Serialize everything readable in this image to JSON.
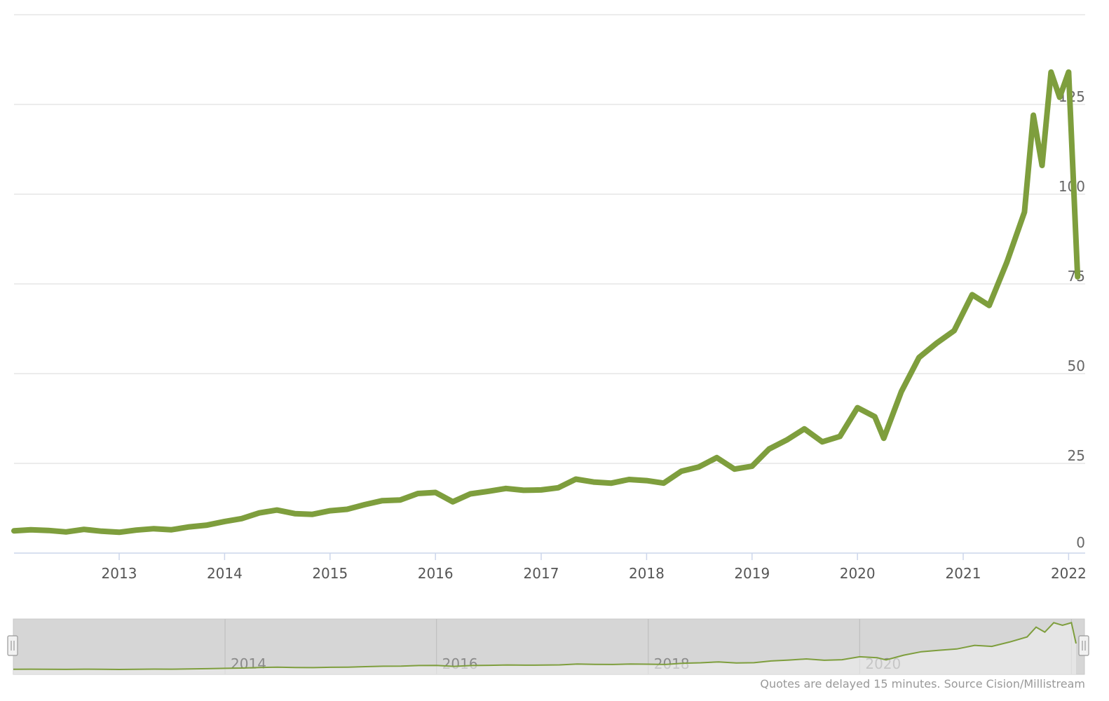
{
  "colors": {
    "series": "#7e9e3d",
    "grid": "#e6e6e6",
    "navigator_bg": "#d6d6d6",
    "navigator_mask": "#efefef",
    "axis": "#ccd6eb"
  },
  "credits": "Quotes are delayed 15 minutes. Source Cision/Millistream",
  "navigator": {
    "labels": [
      "2014",
      "2016",
      "2018",
      "2020"
    ],
    "left_handle_icon": "drag-handle-icon",
    "right_handle_icon": "drag-handle-icon"
  },
  "chart_data": {
    "type": "line",
    "title": "",
    "xlabel": "",
    "ylabel": "",
    "x_range": [
      "2012-01",
      "2022-02"
    ],
    "y_ticks": [
      0,
      25,
      50,
      75,
      100,
      125
    ],
    "y_tick_labels": [
      "0",
      "25",
      "50",
      "75",
      "100",
      "125"
    ],
    "x_tick_labels": [
      "2013",
      "2014",
      "2015",
      "2016",
      "2017",
      "2018",
      "2019",
      "2020",
      "2021",
      "2022"
    ],
    "ylim": [
      0,
      150
    ],
    "y_axis_position": "right",
    "grid": true,
    "legend": "none",
    "series": [
      {
        "color": "#7e9e3d",
        "points": [
          [
            "2012-01-01",
            6.2
          ],
          [
            "2012-03-01",
            6.5
          ],
          [
            "2012-05-01",
            6.3
          ],
          [
            "2012-07-01",
            5.9
          ],
          [
            "2012-09-01",
            6.6
          ],
          [
            "2012-11-01",
            6.1
          ],
          [
            "2013-01-01",
            5.8
          ],
          [
            "2013-03-01",
            6.4
          ],
          [
            "2013-05-01",
            6.8
          ],
          [
            "2013-07-01",
            6.5
          ],
          [
            "2013-09-01",
            7.3
          ],
          [
            "2013-11-01",
            7.8
          ],
          [
            "2014-01-01",
            8.8
          ],
          [
            "2014-03-01",
            9.6
          ],
          [
            "2014-05-01",
            11.2
          ],
          [
            "2014-07-01",
            12.0
          ],
          [
            "2014-09-01",
            11.0
          ],
          [
            "2014-11-01",
            10.8
          ],
          [
            "2015-01-01",
            11.8
          ],
          [
            "2015-03-01",
            12.2
          ],
          [
            "2015-05-01",
            13.5
          ],
          [
            "2015-07-01",
            14.6
          ],
          [
            "2015-09-01",
            14.8
          ],
          [
            "2015-11-01",
            16.6
          ],
          [
            "2016-01-01",
            16.9
          ],
          [
            "2016-03-01",
            14.3
          ],
          [
            "2016-05-01",
            16.5
          ],
          [
            "2016-07-01",
            17.2
          ],
          [
            "2016-09-01",
            18.0
          ],
          [
            "2016-11-01",
            17.5
          ],
          [
            "2017-01-01",
            17.6
          ],
          [
            "2017-03-01",
            18.2
          ],
          [
            "2017-05-01",
            20.6
          ],
          [
            "2017-07-01",
            19.8
          ],
          [
            "2017-09-01",
            19.5
          ],
          [
            "2017-11-01",
            20.5
          ],
          [
            "2018-01-01",
            20.2
          ],
          [
            "2018-03-01",
            19.5
          ],
          [
            "2018-05-01",
            22.8
          ],
          [
            "2018-07-01",
            24.0
          ],
          [
            "2018-09-01",
            26.6
          ],
          [
            "2018-11-01",
            23.4
          ],
          [
            "2019-01-01",
            24.2
          ],
          [
            "2019-03-01",
            29.0
          ],
          [
            "2019-05-01",
            31.5
          ],
          [
            "2019-07-01",
            34.6
          ],
          [
            "2019-09-01",
            31.0
          ],
          [
            "2019-11-01",
            32.5
          ],
          [
            "2020-01-01",
            40.5
          ],
          [
            "2020-03-01",
            38.0
          ],
          [
            "2020-04-01",
            32.0
          ],
          [
            "2020-06-01",
            45.0
          ],
          [
            "2020-08-01",
            54.5
          ],
          [
            "2020-10-01",
            58.5
          ],
          [
            "2020-12-01",
            62.0
          ],
          [
            "2021-02-01",
            72.0
          ],
          [
            "2021-04-01",
            69.0
          ],
          [
            "2021-06-01",
            81.0
          ],
          [
            "2021-08-01",
            95.0
          ],
          [
            "2021-09-01",
            122.0
          ],
          [
            "2021-10-01",
            108.0
          ],
          [
            "2021-11-01",
            134.0
          ],
          [
            "2021-12-01",
            127.0
          ],
          [
            "2022-01-01",
            134.0
          ],
          [
            "2022-02-01",
            77.0
          ]
        ]
      }
    ]
  }
}
